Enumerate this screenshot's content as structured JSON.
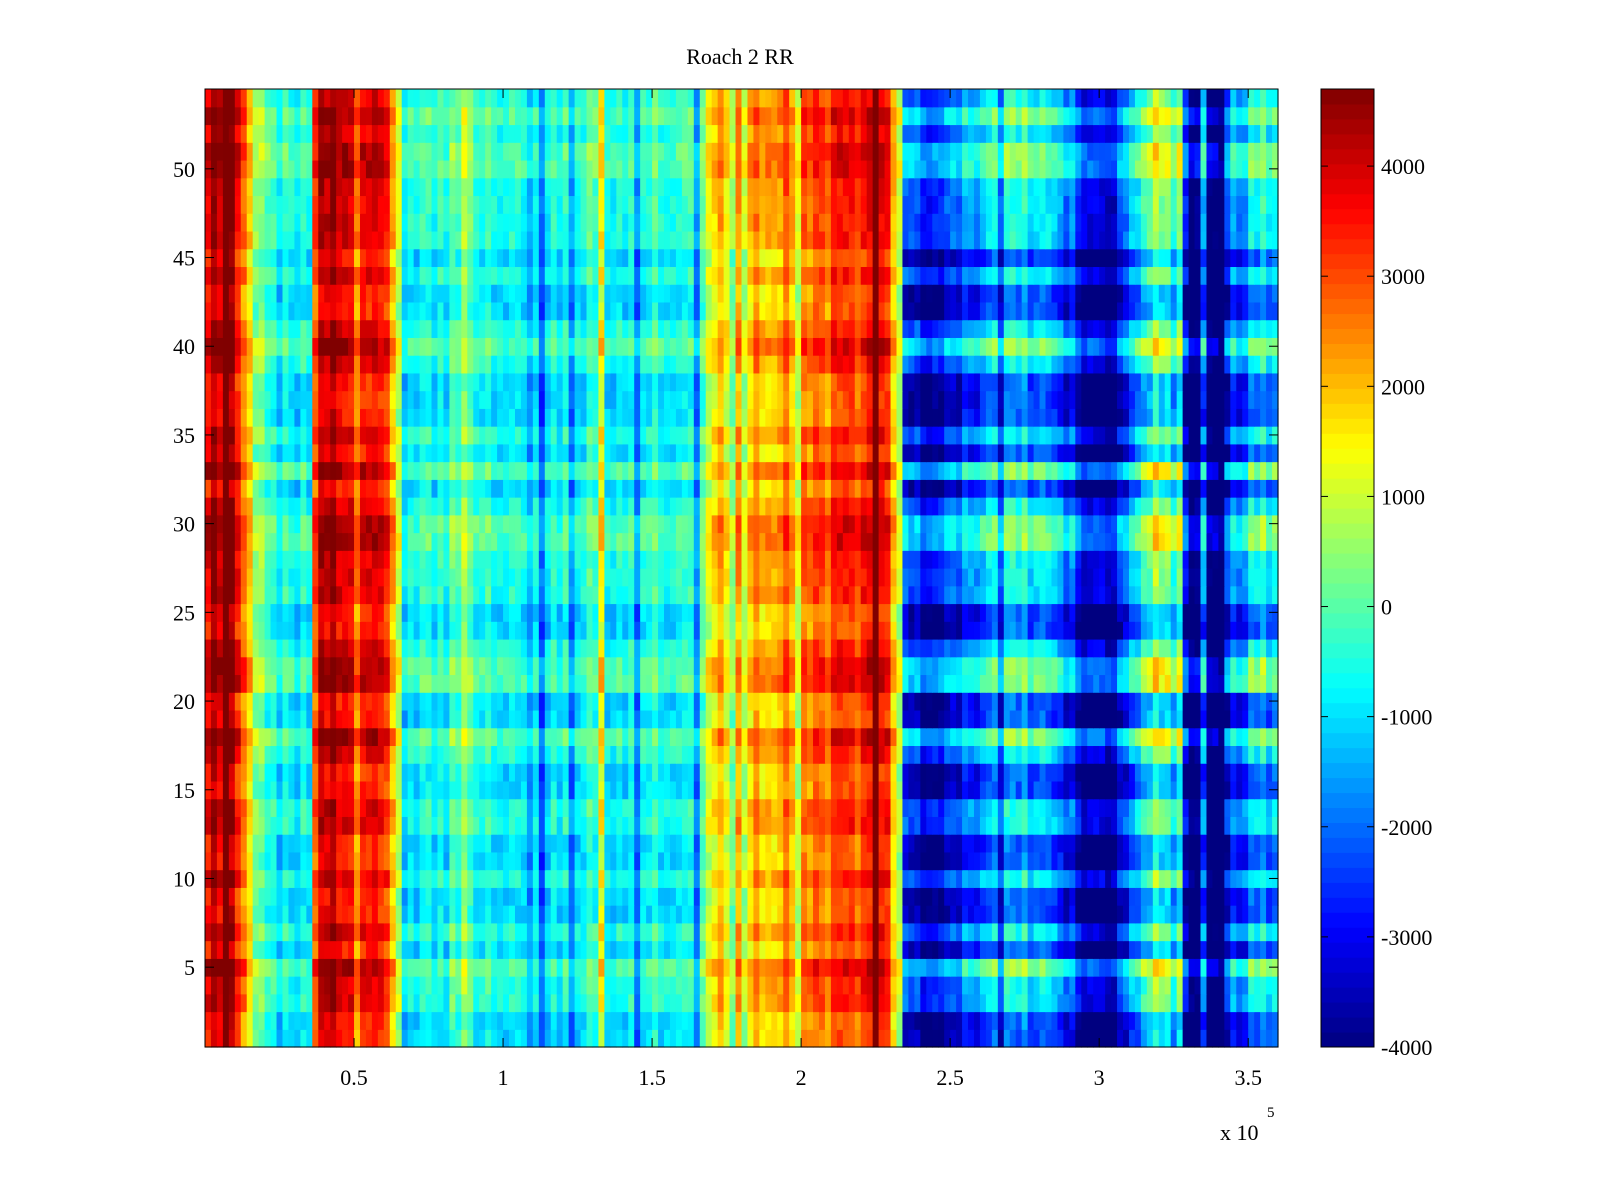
{
  "chart_data": {
    "type": "heatmap",
    "title": "Roach 2 RR",
    "xlabel": "",
    "ylabel": "",
    "x_exponent_label": "x 10",
    "x_exponent_power": "5",
    "xlim": [
      0,
      360000
    ],
    "ylim": [
      0.5,
      54.5
    ],
    "x_ticks": [
      50000,
      100000,
      150000,
      200000,
      250000,
      300000,
      350000
    ],
    "x_tick_labels": [
      "0.5",
      "1",
      "1.5",
      "2",
      "2.5",
      "3",
      "3.5"
    ],
    "y_ticks": [
      5,
      10,
      15,
      20,
      25,
      30,
      35,
      40,
      45,
      50
    ],
    "y_tick_labels": [
      "5",
      "10",
      "15",
      "20",
      "25",
      "30",
      "35",
      "40",
      "45",
      "50"
    ],
    "rows": 54,
    "colorbar": {
      "colormap": "jet",
      "clim": [
        -4000,
        4700
      ],
      "ticks": [
        -4000,
        -3000,
        -2000,
        -1000,
        0,
        1000,
        2000,
        3000,
        4000
      ],
      "tick_labels": [
        "-4000",
        "-3000",
        "-2000",
        "-1000",
        "0",
        "1000",
        "2000",
        "3000",
        "4000"
      ]
    },
    "column_profile": [
      [
        0,
        3800
      ],
      [
        3000,
        4600
      ],
      [
        8000,
        4500
      ],
      [
        12000,
        3300
      ],
      [
        17000,
        600
      ],
      [
        25000,
        -700
      ],
      [
        35000,
        -300
      ],
      [
        38000,
        4200
      ],
      [
        44000,
        4500
      ],
      [
        51000,
        3000
      ],
      [
        55000,
        3800
      ],
      [
        59000,
        4200
      ],
      [
        63000,
        2200
      ],
      [
        67000,
        -800
      ],
      [
        80000,
        -400
      ],
      [
        85000,
        200
      ],
      [
        88000,
        800
      ],
      [
        90000,
        0
      ],
      [
        100000,
        -500
      ],
      [
        110000,
        -900
      ],
      [
        120000,
        -600
      ],
      [
        130000,
        -200
      ],
      [
        140000,
        -400
      ],
      [
        150000,
        -100
      ],
      [
        160000,
        -300
      ],
      [
        167000,
        200
      ],
      [
        171000,
        1900
      ],
      [
        180000,
        2100
      ],
      [
        190000,
        2500
      ],
      [
        200000,
        2700
      ],
      [
        210000,
        3100
      ],
      [
        220000,
        3500
      ],
      [
        228000,
        3400
      ],
      [
        232000,
        3000
      ],
      [
        235000,
        -2300
      ],
      [
        245000,
        -2800
      ],
      [
        255000,
        -1600
      ],
      [
        265000,
        -900
      ],
      [
        275000,
        -500
      ],
      [
        285000,
        -1200
      ],
      [
        292000,
        -2200
      ],
      [
        296000,
        -3200
      ],
      [
        304000,
        -3700
      ],
      [
        310000,
        -1200
      ],
      [
        318000,
        700
      ],
      [
        324000,
        100
      ],
      [
        330000,
        -3700
      ],
      [
        339000,
        -4000
      ],
      [
        345000,
        -1800
      ],
      [
        353000,
        -600
      ],
      [
        360000,
        -900
      ]
    ],
    "cold_rows": [
      1,
      2,
      6,
      8,
      9,
      11,
      12,
      15,
      16,
      19,
      20,
      24,
      25,
      32,
      34,
      36,
      37,
      38,
      42,
      43,
      45
    ],
    "warm_rows": [
      5,
      18,
      21,
      22,
      29,
      30,
      33,
      40,
      50,
      51,
      53
    ]
  }
}
